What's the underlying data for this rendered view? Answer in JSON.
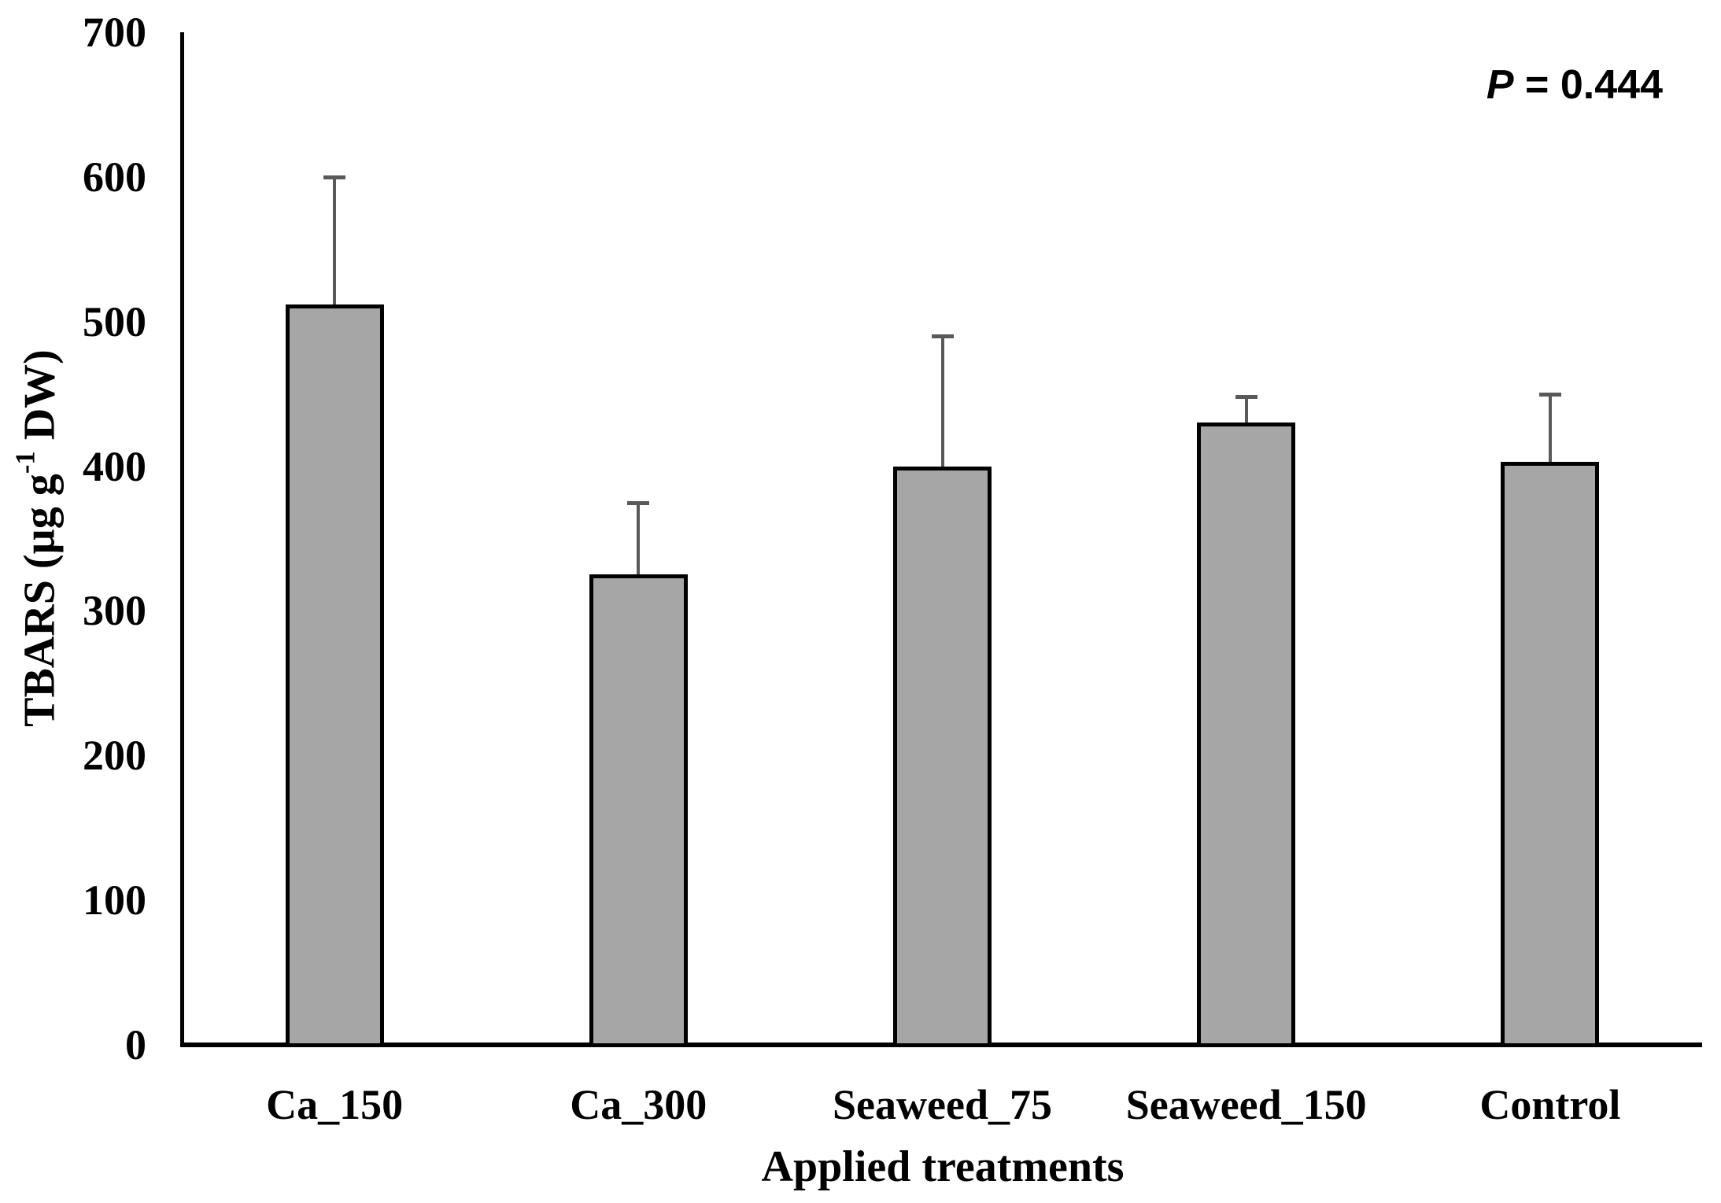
{
  "chart_data": {
    "type": "bar",
    "title": "",
    "categories": [
      "Ca_150",
      "Ca_300",
      "Seaweed_75",
      "Seaweed_150",
      "Control"
    ],
    "values": [
      512,
      325,
      400,
      430,
      403
    ],
    "errors_upper": [
      88,
      50,
      90,
      18,
      47
    ],
    "xlabel": "Applied treatments",
    "ylabel": "TBARS (µg g-1 DW)",
    "ylabel_parts": {
      "prefix": "TBARS (µg g",
      "superscript": "-1",
      "suffix": " DW)"
    },
    "yticks": [
      0,
      100,
      200,
      300,
      400,
      500,
      600,
      700
    ],
    "ylim": [
      0,
      700
    ],
    "grid": false,
    "legend": false,
    "annotation": {
      "italic": "P",
      "rest": " = 0.444"
    }
  },
  "colors": {
    "bar_fill": "#A6A6A6",
    "bar_border": "#000000",
    "error_bar": "#595959",
    "axis": "#000000",
    "text": "#000000",
    "background": "#FFFFFF"
  }
}
